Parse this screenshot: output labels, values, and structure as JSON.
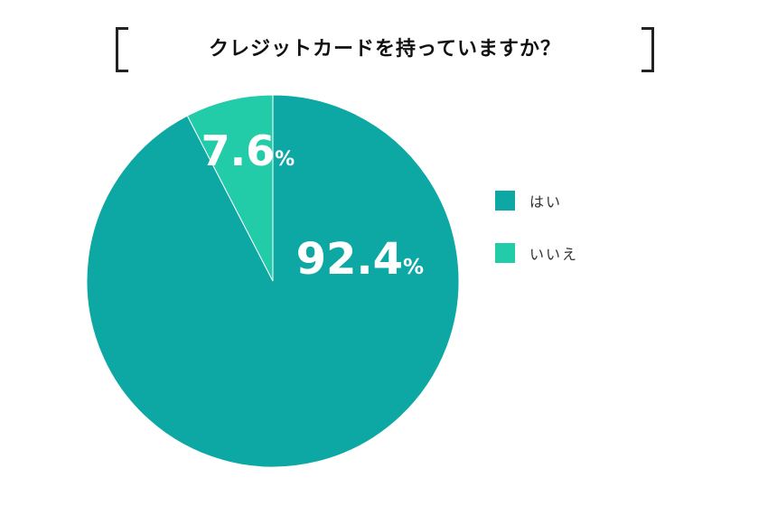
{
  "chart_data": {
    "type": "pie",
    "title": "クレジットカードを持っていますか？",
    "slices": [
      {
        "label": "はい",
        "value": 92.4,
        "value_text": "92.4",
        "unit": "%",
        "color": "#0ea8a4"
      },
      {
        "label": "いいえ",
        "value": 7.6,
        "value_text": "7.6",
        "unit": "%",
        "color": "#22cca9"
      }
    ],
    "start": "12 o'clock",
    "direction": "clockwise",
    "legend_position": "right"
  },
  "colors": {
    "label_text": "#ffffff",
    "slice_border": "#ffffff"
  }
}
